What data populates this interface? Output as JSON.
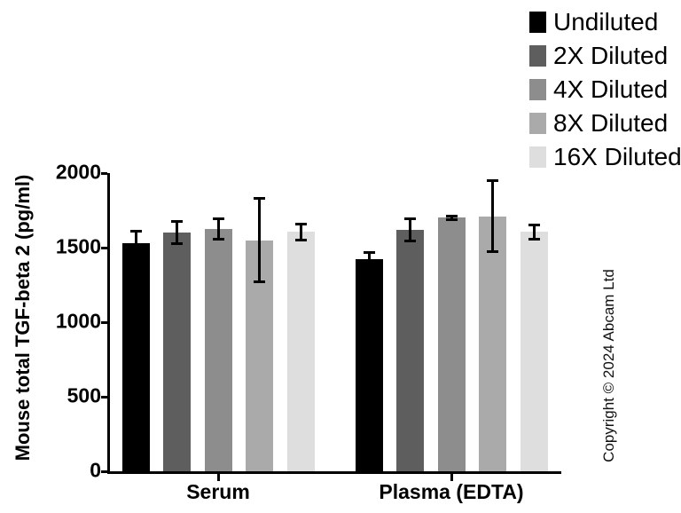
{
  "figure": {
    "copyright": "Copyright © 2024 Abcam Ltd"
  },
  "chart_data": {
    "type": "bar",
    "title": "",
    "xlabel": "",
    "ylabel": "Mouse total TGF-beta 2 (pg/ml)",
    "ylim": [
      0,
      2000
    ],
    "yticks": [
      0,
      500,
      1000,
      1500,
      2000
    ],
    "grid": false,
    "legend_position": "top-right",
    "categories": [
      "Serum",
      "Plasma (EDTA)"
    ],
    "series": [
      {
        "name": "Undiluted",
        "color": "#000000",
        "values": [
          1530,
          1420
        ],
        "errors": [
          85,
          50
        ]
      },
      {
        "name": "2X Diluted",
        "color": "#5e5e5e",
        "values": [
          1600,
          1620
        ],
        "errors": [
          78,
          78
        ]
      },
      {
        "name": "4X Diluted",
        "color": "#8d8d8d",
        "values": [
          1625,
          1700
        ],
        "errors": [
          72,
          15
        ]
      },
      {
        "name": "8X Diluted",
        "color": "#aaaaaa",
        "values": [
          1550,
          1710
        ],
        "errors": [
          285,
          240
        ]
      },
      {
        "name": "16X Diluted",
        "color": "#dedede",
        "values": [
          1605,
          1605
        ],
        "errors": [
          55,
          50
        ]
      }
    ]
  }
}
